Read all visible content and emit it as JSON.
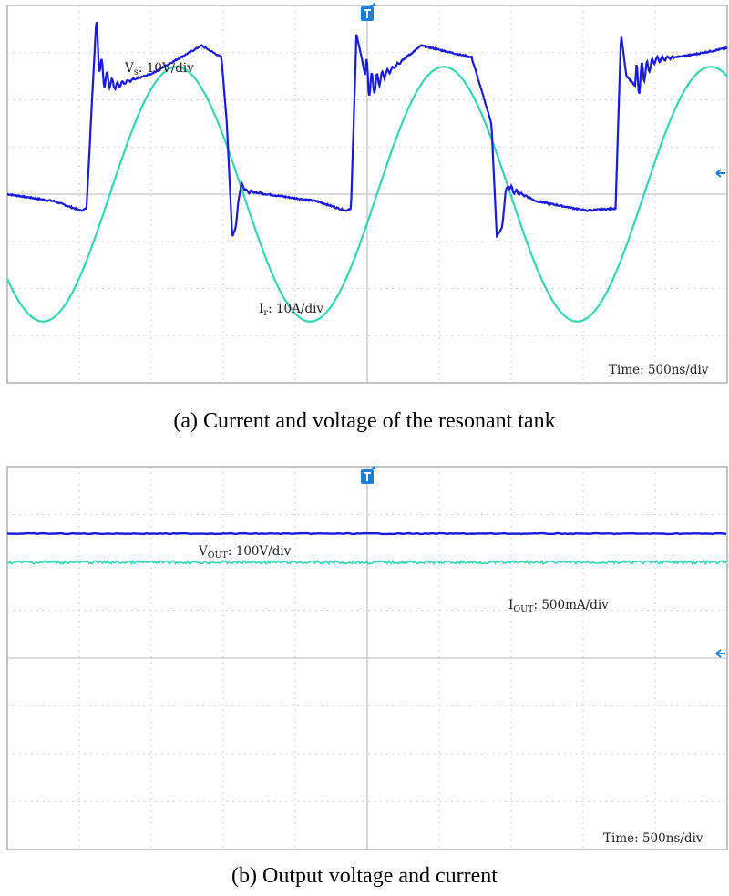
{
  "colors": {
    "voltage_trace": "#1a1adb",
    "current_trace": "#33d6b4",
    "grid": "#b8b8b8",
    "marker": "#1a7fd8"
  },
  "chart_data": [
    {
      "type": "line",
      "caption": "(a) Current and voltage of the resonant tank",
      "time_scale_label": "Time",
      "time_scale_value": ": 500ns/div",
      "grid": true,
      "divisions": {
        "x": 10,
        "y": 8
      },
      "series": [
        {
          "name_main": "V",
          "name_sub": "s",
          "scale": ": 10V/div",
          "x": [
            0.0,
            1.3,
            2.05,
            2.2,
            2.45,
            2.65,
            3.0,
            4.0,
            5.4,
            5.95,
            6.1,
            6.25,
            6.35,
            6.45,
            6.55,
            6.65,
            6.8,
            7.2,
            8.6,
            9.4,
            9.55,
            9.7,
            9.95,
            10.15,
            10.5,
            11.5,
            12.9,
            13.45,
            13.6,
            13.75,
            13.85,
            13.95,
            14.05,
            14.15,
            14.3,
            14.7,
            16.1,
            16.9,
            17.05,
            17.2,
            17.45,
            17.65,
            18.0,
            19.0,
            20.0
          ],
          "y": [
            0.0,
            -0.15,
            -0.35,
            -0.3,
            3.4,
            2.5,
            2.3,
            2.55,
            3.15,
            2.9,
            1.5,
            -0.9,
            -0.7,
            0.1,
            0.2,
            0.05,
            0.05,
            0.0,
            -0.15,
            -0.35,
            -0.3,
            3.4,
            2.5,
            2.3,
            2.55,
            3.15,
            2.9,
            1.5,
            -0.9,
            -0.7,
            0.1,
            0.2,
            0.05,
            0.05,
            0.0,
            -0.15,
            -0.35,
            -0.3,
            3.4,
            2.5,
            2.3,
            2.55,
            2.85,
            2.95,
            3.1
          ]
        },
        {
          "name_main": "I",
          "name_sub": "r",
          "scale": ": 10A/div",
          "period_div": 7.42,
          "zero_cross_div": 2.85,
          "amplitude_div": 2.7
        }
      ]
    },
    {
      "type": "line",
      "caption": "(b) Output voltage and current",
      "time_scale_label": "Time",
      "time_scale_value": ": 500ns/div",
      "grid": true,
      "divisions": {
        "x": 10,
        "y": 8
      },
      "series": [
        {
          "name_main": "V",
          "name_sub": "OUT",
          "scale": ": 100V/div",
          "level_div": 2.6
        },
        {
          "name_main": "I",
          "name_sub": "OUT",
          "scale": ": 500mA/div",
          "level_div": 2.0
        }
      ]
    }
  ]
}
